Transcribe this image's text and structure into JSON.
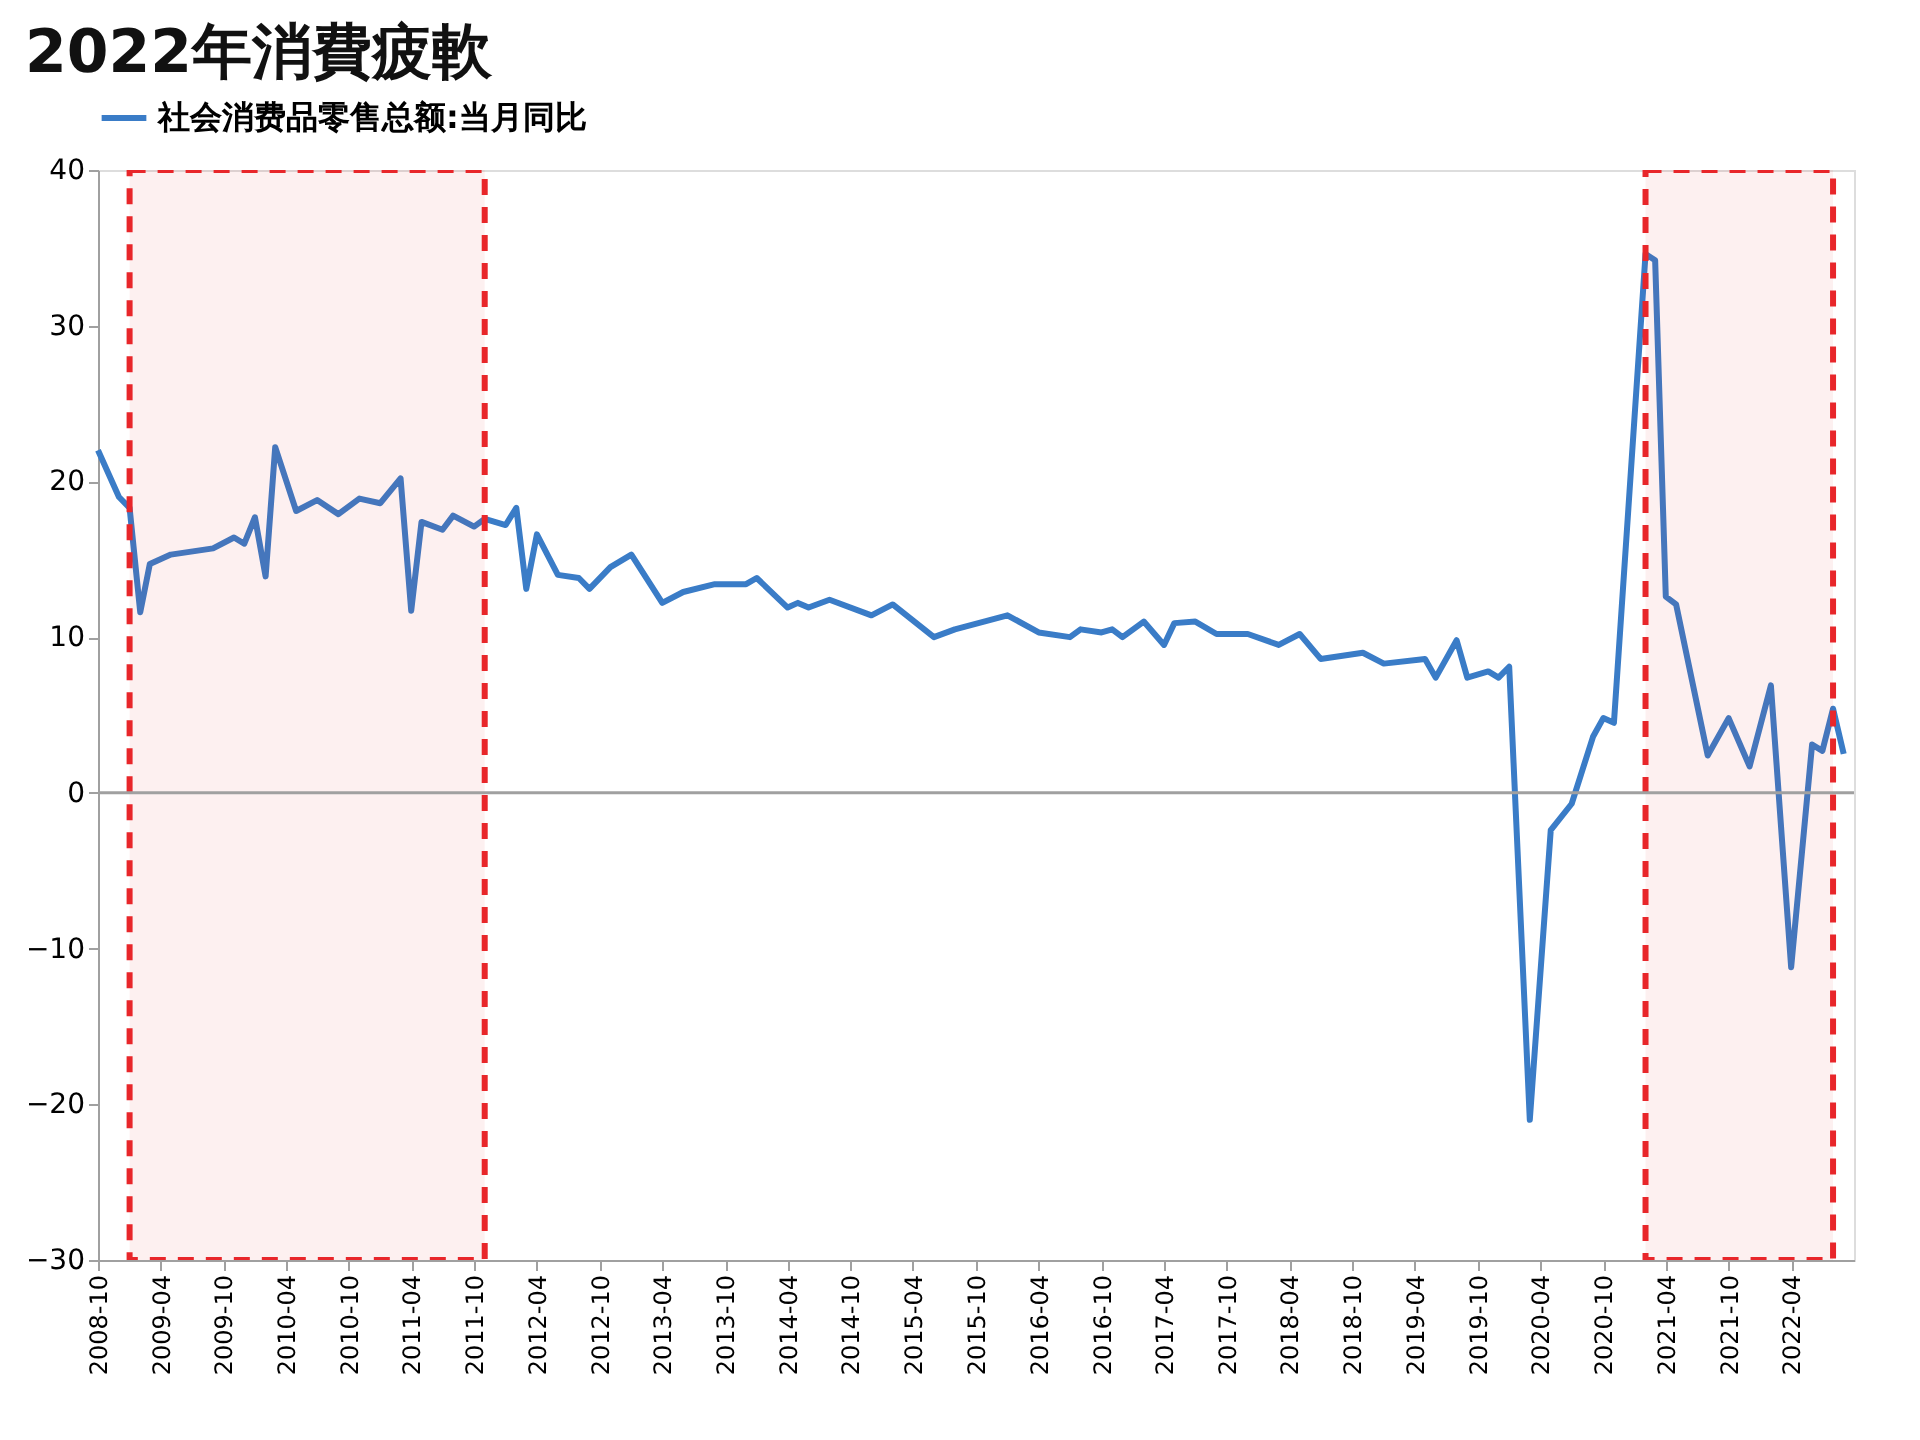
{
  "chart_data": {
    "type": "line",
    "title": "2022年消費疲軟",
    "x": [
      "2008-10",
      "2008-12",
      "2009-01",
      "2009-02",
      "2009-03",
      "2009-05",
      "2009-09",
      "2009-11",
      "2009-12",
      "2010-01",
      "2010-02",
      "2010-03",
      "2010-05",
      "2010-07",
      "2010-09",
      "2010-11",
      "2011-01",
      "2011-03",
      "2011-04",
      "2011-05",
      "2011-07",
      "2011-08",
      "2011-10",
      "2011-11",
      "2012-01",
      "2012-02",
      "2012-03",
      "2012-04",
      "2012-06",
      "2012-08",
      "2012-09",
      "2012-11",
      "2013-01",
      "2013-04",
      "2013-06",
      "2013-09",
      "2013-12",
      "2014-01",
      "2014-04",
      "2014-05",
      "2014-06",
      "2014-08",
      "2014-12",
      "2015-02",
      "2015-06",
      "2015-08",
      "2016-01",
      "2016-04",
      "2016-07",
      "2016-08",
      "2016-10",
      "2016-11",
      "2016-12",
      "2017-02",
      "2017-04",
      "2017-05",
      "2017-07",
      "2017-09",
      "2017-12",
      "2018-03",
      "2018-05",
      "2018-07",
      "2018-11",
      "2019-01",
      "2019-05",
      "2019-06",
      "2019-08",
      "2019-09",
      "2019-11",
      "2019-12",
      "2020-01",
      "2020-03",
      "2020-05",
      "2020-07",
      "2020-09",
      "2020-10",
      "2020-11",
      "2021-02",
      "2021-03",
      "2021-04",
      "2021-05",
      "2021-08",
      "2021-10",
      "2021-12",
      "2022-02",
      "2022-04",
      "2022-06",
      "2022-07",
      "2022-08",
      "2022-09"
    ],
    "series": [
      {
        "name": "社会消费品零售总额:当月同比",
        "color": "#3a7cc7",
        "values": [
          22,
          19,
          18.3,
          11.6,
          14.7,
          15.3,
          15.7,
          16.4,
          16,
          17.7,
          13.9,
          22.2,
          18.1,
          18.8,
          17.9,
          18.9,
          18.6,
          20.2,
          11.7,
          17.4,
          16.9,
          17.8,
          17.1,
          17.6,
          17.2,
          18.3,
          13.1,
          16.6,
          14,
          13.8,
          13.1,
          14.5,
          15.3,
          12.2,
          12.9,
          13.4,
          13.4,
          13.8,
          11.9,
          12.2,
          11.9,
          12.4,
          11.4,
          12.1,
          10,
          10.5,
          11.4,
          10.3,
          10,
          10.5,
          10.3,
          10.5,
          10,
          11,
          9.5,
          10.9,
          11,
          10.2,
          10.2,
          9.5,
          10.2,
          8.6,
          9,
          8.3,
          8.6,
          7.4,
          9.8,
          7.4,
          7.8,
          7.4,
          8.1,
          -21,
          -2.4,
          -0.7,
          3.6,
          4.8,
          4.5,
          34.6,
          34.2,
          12.6,
          12.1,
          2.4,
          4.8,
          1.7,
          6.9,
          -11.2,
          3.1,
          2.7,
          5.4,
          2.5
        ]
      }
    ],
    "xlim": [
      "2008-10",
      "2022-10"
    ],
    "xticks": [
      "2008-10",
      "2009-04",
      "2009-10",
      "2010-04",
      "2010-10",
      "2011-04",
      "2011-10",
      "2012-04",
      "2012-10",
      "2013-04",
      "2013-10",
      "2014-04",
      "2014-10",
      "2015-04",
      "2015-10",
      "2016-04",
      "2016-10",
      "2017-04",
      "2017-10",
      "2018-04",
      "2018-10",
      "2019-04",
      "2019-10",
      "2020-04",
      "2020-10",
      "2021-04",
      "2021-10",
      "2022-04"
    ],
    "ylim": [
      -30,
      40
    ],
    "yticks": [
      -30,
      -20,
      -10,
      0,
      10,
      20,
      30,
      40
    ],
    "grid": false,
    "legend": "top",
    "marker": "none",
    "line_style": "solid",
    "ref_lines": [
      {
        "axis": "y",
        "value": 0,
        "color": "#a0a0a0"
      }
    ],
    "bands": [
      {
        "axis": "x",
        "from": "2009-01",
        "to": "2011-11",
        "color": "#e8262a"
      },
      {
        "axis": "x",
        "from": "2021-02",
        "to": "2022-08",
        "color": "#e8262a"
      }
    ]
  }
}
